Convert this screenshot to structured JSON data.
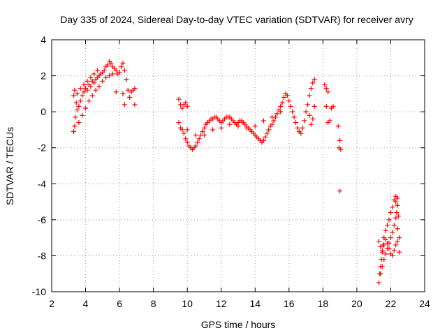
{
  "chart_data": {
    "type": "scatter",
    "title": "Day 335 of 2024, Sidereal Day-to-day VTEC variation (SDTVAR) for receiver avry",
    "xlabel": "GPS time / hours",
    "ylabel": "SDTVAR / TECUs",
    "xlim": [
      2,
      24
    ],
    "ylim": [
      -10,
      4
    ],
    "xticks": [
      2,
      4,
      6,
      8,
      10,
      12,
      14,
      16,
      18,
      20,
      22,
      24
    ],
    "yticks": [
      -10,
      -8,
      -6,
      -4,
      -2,
      0,
      2,
      4
    ],
    "xtick_labels": [
      "2",
      "4",
      "6",
      "8",
      "10",
      "12",
      "14",
      "16",
      "18",
      "20",
      "22",
      "24"
    ],
    "ytick_labels": [
      "-10",
      "-8",
      "-6",
      "-4",
      "-2",
      "0",
      "2",
      "4"
    ],
    "grid": true,
    "marker": "+",
    "series": [
      {
        "name": "SDTVAR",
        "color": "#ff0000",
        "points": [
          [
            3.3,
            -1.1
          ],
          [
            3.35,
            -0.8
          ],
          [
            3.4,
            -0.3
          ],
          [
            3.3,
            0.9
          ],
          [
            3.35,
            1.2
          ],
          [
            3.45,
            0.5
          ],
          [
            3.5,
            0.1
          ],
          [
            3.6,
            0.3
          ],
          [
            3.7,
            0.6
          ],
          [
            3.8,
            0.9
          ],
          [
            3.9,
            1.1
          ],
          [
            4.0,
            1.3
          ],
          [
            4.1,
            1.2
          ],
          [
            4.2,
            1.5
          ],
          [
            4.3,
            1.4
          ],
          [
            4.4,
            1.7
          ],
          [
            4.5,
            1.6
          ],
          [
            4.6,
            1.8
          ],
          [
            4.7,
            1.9
          ],
          [
            4.8,
            2.0
          ],
          [
            4.9,
            2.1
          ],
          [
            5.0,
            2.2
          ],
          [
            5.1,
            2.3
          ],
          [
            5.2,
            2.5
          ],
          [
            5.3,
            2.6
          ],
          [
            5.4,
            2.8
          ],
          [
            5.5,
            2.7
          ],
          [
            5.6,
            2.5
          ],
          [
            5.7,
            2.4
          ],
          [
            5.8,
            2.3
          ],
          [
            5.9,
            2.1
          ],
          [
            6.0,
            2.2
          ],
          [
            6.1,
            2.5
          ],
          [
            6.2,
            2.7
          ],
          [
            6.3,
            2.3
          ],
          [
            6.4,
            1.8
          ],
          [
            6.5,
            1.2
          ],
          [
            6.6,
            0.8
          ],
          [
            6.7,
            1.1
          ],
          [
            6.8,
            1.2
          ],
          [
            6.9,
            1.3
          ],
          [
            6.9,
            0.4
          ],
          [
            6.3,
            0.4
          ],
          [
            6.2,
            1.0
          ],
          [
            5.8,
            1.1
          ],
          [
            3.6,
            -0.6
          ],
          [
            3.8,
            -0.2
          ],
          [
            4.0,
            0.2
          ],
          [
            4.2,
            0.6
          ],
          [
            4.4,
            0.9
          ],
          [
            4.6,
            1.2
          ],
          [
            4.8,
            1.4
          ],
          [
            5.0,
            1.7
          ],
          [
            5.2,
            1.9
          ],
          [
            5.4,
            2.0
          ],
          [
            5.6,
            2.1
          ],
          [
            3.5,
            1.0
          ],
          [
            3.7,
            1.3
          ],
          [
            3.9,
            1.5
          ],
          [
            4.1,
            1.7
          ],
          [
            4.3,
            1.9
          ],
          [
            4.5,
            2.1
          ],
          [
            4.7,
            2.3
          ],
          [
            9.5,
            0.7
          ],
          [
            9.6,
            0.4
          ],
          [
            9.7,
            0.2
          ],
          [
            9.8,
            0.4
          ],
          [
            9.9,
            0.5
          ],
          [
            10.0,
            0.3
          ],
          [
            9.5,
            -0.6
          ],
          [
            9.6,
            -0.9
          ],
          [
            9.7,
            -1.0
          ],
          [
            9.8,
            -1.2
          ],
          [
            9.9,
            -1.5
          ],
          [
            10.0,
            -1.7
          ],
          [
            10.1,
            -1.9
          ],
          [
            10.2,
            -2.0
          ],
          [
            10.3,
            -2.1
          ],
          [
            10.4,
            -2.0
          ],
          [
            10.5,
            -1.9
          ],
          [
            10.6,
            -1.7
          ],
          [
            10.7,
            -1.5
          ],
          [
            10.8,
            -1.3
          ],
          [
            10.9,
            -1.1
          ],
          [
            11.0,
            -0.9
          ],
          [
            11.1,
            -0.7
          ],
          [
            11.2,
            -0.6
          ],
          [
            11.3,
            -0.5
          ],
          [
            11.4,
            -0.4
          ],
          [
            11.5,
            -0.4
          ],
          [
            11.6,
            -0.3
          ],
          [
            11.7,
            -0.3
          ],
          [
            11.8,
            -0.4
          ],
          [
            11.9,
            -0.5
          ],
          [
            12.0,
            -0.6
          ],
          [
            12.1,
            -0.5
          ],
          [
            12.2,
            -0.4
          ],
          [
            12.3,
            -0.3
          ],
          [
            12.4,
            -0.3
          ],
          [
            12.5,
            -0.3
          ],
          [
            12.6,
            -0.4
          ],
          [
            12.7,
            -0.5
          ],
          [
            12.8,
            -0.6
          ],
          [
            12.9,
            -0.7
          ],
          [
            13.0,
            -0.6
          ],
          [
            13.1,
            -0.5
          ],
          [
            13.2,
            -0.5
          ],
          [
            13.3,
            -0.6
          ],
          [
            13.4,
            -0.7
          ],
          [
            13.5,
            -0.8
          ],
          [
            13.6,
            -0.9
          ],
          [
            13.7,
            -1.0
          ],
          [
            13.8,
            -1.1
          ],
          [
            13.9,
            -1.2
          ],
          [
            14.0,
            -1.3
          ],
          [
            14.1,
            -1.4
          ],
          [
            14.2,
            -1.5
          ],
          [
            14.3,
            -1.6
          ],
          [
            14.4,
            -1.7
          ],
          [
            14.5,
            -1.6
          ],
          [
            14.6,
            -1.4
          ],
          [
            14.7,
            -1.2
          ],
          [
            14.8,
            -1.0
          ],
          [
            14.9,
            -0.8
          ],
          [
            15.0,
            -0.7
          ],
          [
            15.1,
            -0.5
          ],
          [
            15.2,
            -0.3
          ],
          [
            15.3,
            -0.1
          ],
          [
            15.4,
            0.1
          ],
          [
            15.5,
            0.3
          ],
          [
            15.6,
            0.5
          ],
          [
            15.7,
            0.8
          ],
          [
            15.8,
            1.0
          ],
          [
            15.9,
            0.9
          ],
          [
            16.0,
            0.6
          ],
          [
            16.1,
            0.3
          ],
          [
            16.2,
            0.0
          ],
          [
            16.3,
            -0.3
          ],
          [
            16.4,
            -0.6
          ],
          [
            16.5,
            -0.9
          ],
          [
            16.6,
            -1.1
          ],
          [
            16.7,
            -1.2
          ],
          [
            16.8,
            -0.9
          ],
          [
            16.9,
            -0.5
          ],
          [
            17.0,
            0.0
          ],
          [
            17.1,
            0.4
          ],
          [
            17.2,
            0.9
          ],
          [
            17.3,
            1.3
          ],
          [
            17.4,
            1.6
          ],
          [
            17.5,
            1.8
          ],
          [
            17.5,
            0.3
          ],
          [
            17.4,
            -0.4
          ],
          [
            17.3,
            -0.7
          ],
          [
            17.2,
            -0.2
          ],
          [
            18.1,
            1.5
          ],
          [
            18.2,
            1.3
          ],
          [
            18.3,
            1.1
          ],
          [
            18.2,
            0.3
          ],
          [
            18.3,
            -0.6
          ],
          [
            18.4,
            -0.5
          ],
          [
            18.5,
            0.2
          ],
          [
            18.6,
            0.3
          ],
          [
            18.9,
            -0.8
          ],
          [
            19.0,
            -1.6
          ],
          [
            18.95,
            -2.0
          ],
          [
            19.05,
            -2.1
          ],
          [
            19.0,
            -4.4
          ],
          [
            11.0,
            -1.3
          ],
          [
            11.5,
            -1.0
          ],
          [
            12.0,
            -0.9
          ],
          [
            12.5,
            -0.7
          ],
          [
            13.0,
            -0.8
          ],
          [
            13.5,
            -0.9
          ],
          [
            14.0,
            -0.8
          ],
          [
            14.5,
            -0.5
          ],
          [
            15.0,
            -0.3
          ],
          [
            15.5,
            0.0
          ],
          [
            10.5,
            -1.3
          ],
          [
            10.0,
            -1.0
          ],
          [
            21.3,
            -9.5
          ],
          [
            21.35,
            -9.0
          ],
          [
            21.4,
            -8.6
          ],
          [
            21.45,
            -8.2
          ],
          [
            21.5,
            -7.8
          ],
          [
            21.55,
            -7.4
          ],
          [
            21.6,
            -7.0
          ],
          [
            21.7,
            -6.6
          ],
          [
            21.8,
            -6.3
          ],
          [
            21.9,
            -6.0
          ],
          [
            22.0,
            -5.6
          ],
          [
            22.1,
            -5.3
          ],
          [
            22.2,
            -4.9
          ],
          [
            22.3,
            -4.7
          ],
          [
            22.4,
            -4.8
          ],
          [
            22.4,
            -5.2
          ],
          [
            22.35,
            -5.6
          ],
          [
            22.3,
            -5.9
          ],
          [
            22.2,
            -6.3
          ],
          [
            22.1,
            -6.7
          ],
          [
            22.0,
            -7.0
          ],
          [
            21.9,
            -7.3
          ],
          [
            21.8,
            -7.6
          ],
          [
            21.7,
            -7.9
          ],
          [
            21.6,
            -8.2
          ],
          [
            21.5,
            -8.6
          ],
          [
            21.4,
            -9.0
          ],
          [
            21.3,
            -7.2
          ],
          [
            21.4,
            -7.5
          ],
          [
            21.5,
            -7.7
          ],
          [
            21.6,
            -7.4
          ],
          [
            21.7,
            -7.1
          ],
          [
            21.8,
            -7.3
          ],
          [
            21.9,
            -7.6
          ],
          [
            22.0,
            -7.9
          ],
          [
            22.1,
            -8.0
          ],
          [
            22.2,
            -7.7
          ],
          [
            22.3,
            -7.4
          ],
          [
            22.4,
            -7.2
          ],
          [
            22.45,
            -5.8
          ],
          [
            22.3,
            -5.0
          ],
          [
            22.5,
            -7.8
          ],
          [
            22.5,
            -7.0
          ],
          [
            22.4,
            -6.5
          ]
        ]
      }
    ]
  }
}
